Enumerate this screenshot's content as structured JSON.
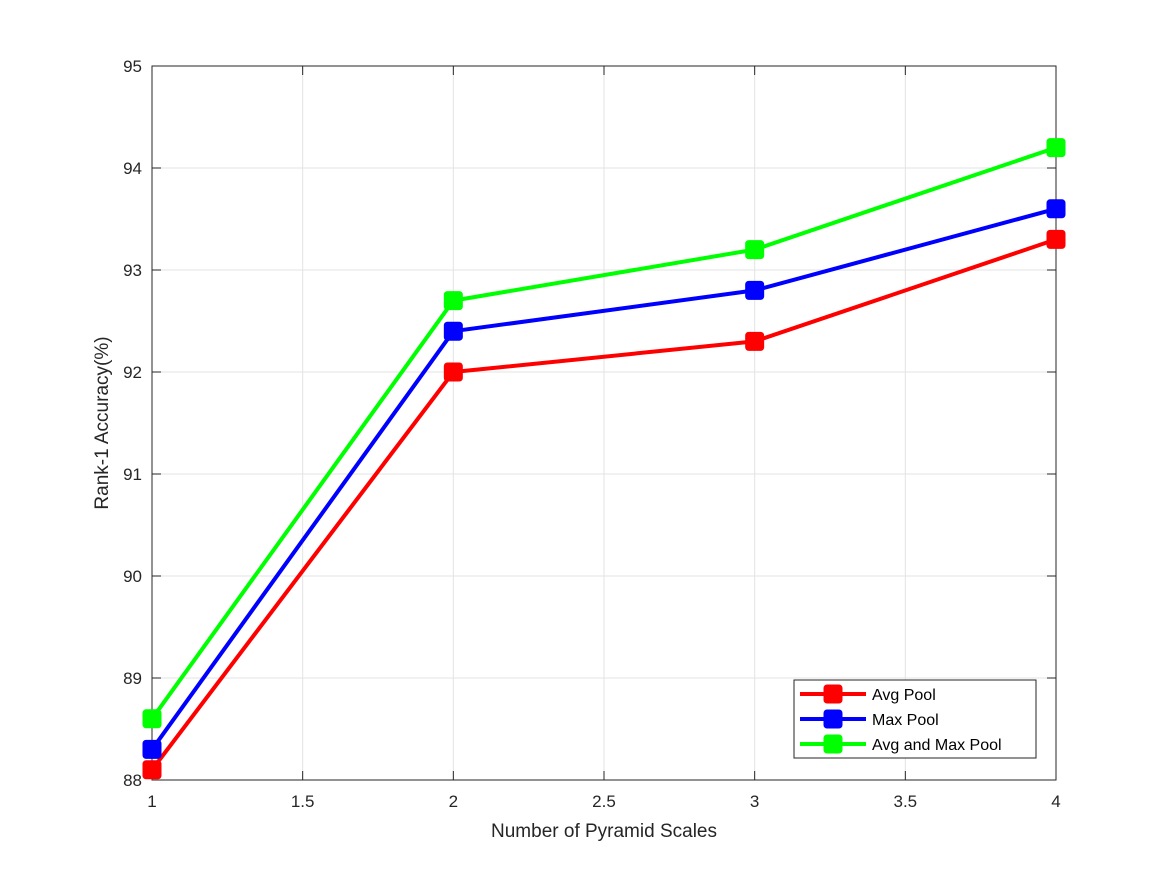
{
  "chart_data": {
    "type": "line",
    "title": "",
    "xlabel": "Number of Pyramid Scales",
    "ylabel": "Rank-1 Accuracy(%)",
    "xlim": [
      1,
      4
    ],
    "ylim": [
      88,
      95
    ],
    "xticks": [
      1,
      1.5,
      2,
      2.5,
      3,
      3.5,
      4
    ],
    "yticks": [
      88,
      89,
      90,
      91,
      92,
      93,
      94,
      95
    ],
    "grid": true,
    "legend_position": "bottom-right",
    "x": [
      1,
      2,
      3,
      4
    ],
    "series": [
      {
        "name": "Avg Pool",
        "color": "#ff0000",
        "marker": "square",
        "values": [
          88.1,
          92.0,
          92.3,
          93.3
        ]
      },
      {
        "name": "Max Pool",
        "color": "#0000ff",
        "marker": "square",
        "values": [
          88.3,
          92.4,
          92.8,
          93.6
        ]
      },
      {
        "name": "Avg and Max Pool",
        "color": "#00ff00",
        "marker": "square",
        "values": [
          88.6,
          92.7,
          93.2,
          94.2
        ]
      }
    ]
  }
}
